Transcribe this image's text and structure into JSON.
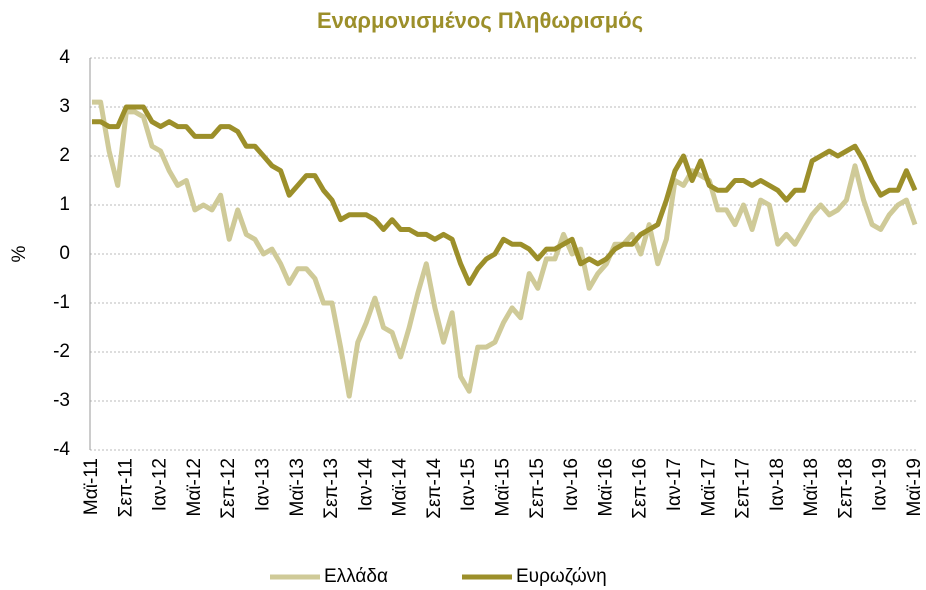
{
  "chart_data": {
    "type": "line",
    "title": "Εναρμονισμένος Πληθωρισμός",
    "y_label": "%",
    "categories": [
      "Μαϊ-11",
      null,
      null,
      null,
      "Σεπ-11",
      null,
      null,
      null,
      "Ιαν-12",
      null,
      null,
      null,
      "Μαϊ-12",
      null,
      null,
      null,
      "Σεπ-12",
      null,
      null,
      null,
      "Ιαν-13",
      null,
      null,
      null,
      "Μαϊ-13",
      null,
      null,
      null,
      "Σεπ-13",
      null,
      null,
      null,
      "Ιαν-14",
      null,
      null,
      null,
      "Μαϊ-14",
      null,
      null,
      null,
      "Σεπ-14",
      null,
      null,
      null,
      "Ιαν-15",
      null,
      null,
      null,
      "Μαϊ-15",
      null,
      null,
      null,
      "Σεπ-15",
      null,
      null,
      null,
      "Ιαν-16",
      null,
      null,
      null,
      "Μαϊ-16",
      null,
      null,
      null,
      "Σεπ-16",
      null,
      null,
      null,
      "Ιαν-17",
      null,
      null,
      null,
      "Μαϊ-17",
      null,
      null,
      null,
      "Σεπ-17",
      null,
      null,
      null,
      "Ιαν-18",
      null,
      null,
      null,
      "Μαϊ-18",
      null,
      null,
      null,
      "Σεπ-18",
      null,
      null,
      null,
      "Ιαν-19",
      null,
      null,
      null,
      "Μαϊ-19"
    ],
    "series": [
      {
        "name": "Ελλάδα",
        "color": "#cfca98",
        "values": [
          3.1,
          3.1,
          2.1,
          1.4,
          2.9,
          2.9,
          2.8,
          2.2,
          2.1,
          1.7,
          1.4,
          1.5,
          0.9,
          1.0,
          0.9,
          1.2,
          0.3,
          0.9,
          0.4,
          0.3,
          0.0,
          0.1,
          -0.2,
          -0.6,
          -0.3,
          -0.3,
          -0.5,
          -1.0,
          -1.0,
          -1.9,
          -2.9,
          -1.8,
          -1.4,
          -0.9,
          -1.5,
          -1.6,
          -2.1,
          -1.5,
          -0.8,
          -0.2,
          -1.1,
          -1.8,
          -1.2,
          -2.5,
          -2.8,
          -1.9,
          -1.9,
          -1.8,
          -1.4,
          -1.1,
          -1.3,
          -0.4,
          -0.7,
          -0.1,
          -0.1,
          0.4,
          0.0,
          0.1,
          -0.7,
          -0.4,
          -0.2,
          0.2,
          0.2,
          0.4,
          0.0,
          0.6,
          -0.2,
          0.3,
          1.5,
          1.4,
          1.7,
          1.6,
          1.5,
          0.9,
          0.9,
          0.6,
          1.0,
          0.5,
          1.1,
          1.0,
          0.2,
          0.4,
          0.2,
          0.5,
          0.8,
          1.0,
          0.8,
          0.9,
          1.1,
          1.8,
          1.1,
          0.6,
          0.5,
          0.8,
          1.0,
          1.1,
          0.6
        ]
      },
      {
        "name": "Ευρωζώνη",
        "color": "#9c8f2a",
        "values": [
          2.7,
          2.7,
          2.6,
          2.6,
          3.0,
          3.0,
          3.0,
          2.7,
          2.6,
          2.7,
          2.6,
          2.6,
          2.4,
          2.4,
          2.4,
          2.6,
          2.6,
          2.5,
          2.2,
          2.2,
          2.0,
          1.8,
          1.7,
          1.2,
          1.4,
          1.6,
          1.6,
          1.3,
          1.1,
          0.7,
          0.8,
          0.8,
          0.8,
          0.7,
          0.5,
          0.7,
          0.5,
          0.5,
          0.4,
          0.4,
          0.3,
          0.4,
          0.3,
          -0.2,
          -0.6,
          -0.3,
          -0.1,
          0.0,
          0.3,
          0.2,
          0.2,
          0.1,
          -0.1,
          0.1,
          0.1,
          0.2,
          0.3,
          -0.2,
          -0.1,
          -0.2,
          -0.1,
          0.1,
          0.2,
          0.2,
          0.4,
          0.5,
          0.6,
          1.1,
          1.7,
          2.0,
          1.5,
          1.9,
          1.4,
          1.3,
          1.3,
          1.5,
          1.5,
          1.4,
          1.5,
          1.4,
          1.3,
          1.1,
          1.3,
          1.3,
          1.9,
          2.0,
          2.1,
          2.0,
          2.1,
          2.2,
          1.9,
          1.5,
          1.2,
          1.3,
          1.3,
          1.7,
          1.3
        ]
      }
    ],
    "ylim": [
      -4,
      4
    ],
    "yticks": [
      -4,
      -3,
      -2,
      -1,
      0,
      1,
      2,
      3,
      4
    ],
    "grid": true,
    "legend": "bottom"
  }
}
